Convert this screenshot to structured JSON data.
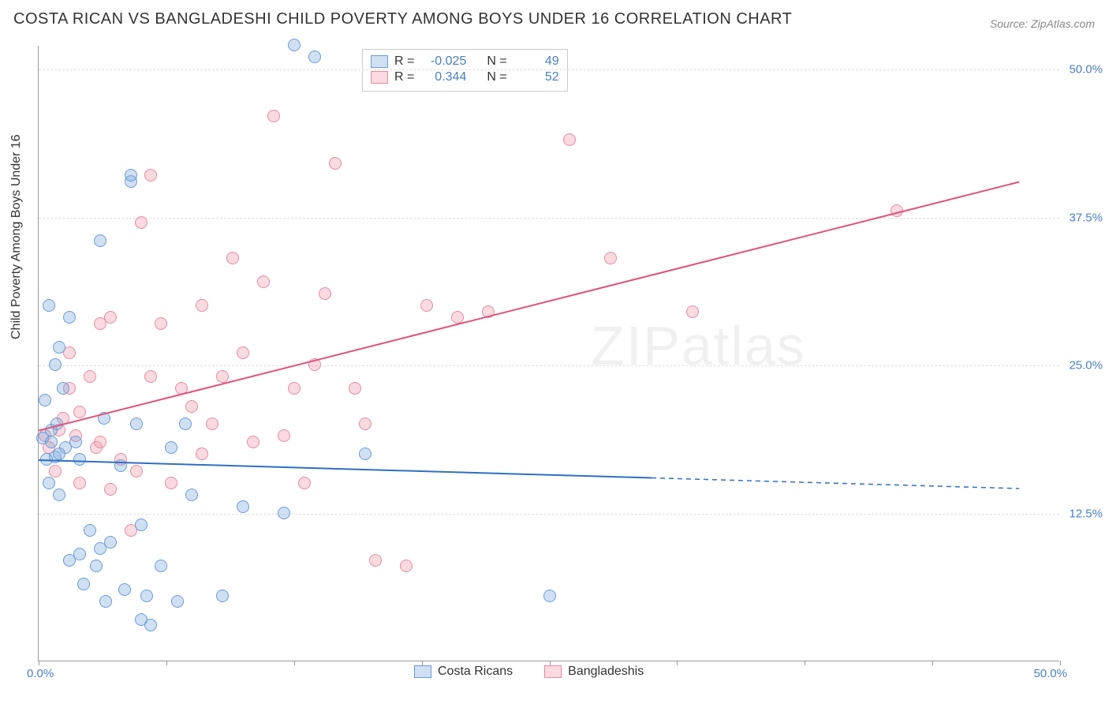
{
  "title": "COSTA RICAN VS BANGLADESHI CHILD POVERTY AMONG BOYS UNDER 16 CORRELATION CHART",
  "source": "Source: ZipAtlas.com",
  "y_axis_label": "Child Poverty Among Boys Under 16",
  "watermark": "ZIPatlas",
  "chart": {
    "type": "scatter",
    "xlim": [
      0,
      50
    ],
    "ylim": [
      0,
      52
    ],
    "x_origin_label": "0.0%",
    "x_end_label": "50.0%",
    "y_ticks": [
      {
        "v": 12.5,
        "label": "12.5%"
      },
      {
        "v": 25.0,
        "label": "25.0%"
      },
      {
        "v": 37.5,
        "label": "37.5%"
      },
      {
        "v": 50.0,
        "label": "50.0%"
      }
    ],
    "x_tick_positions": [
      0,
      6.25,
      12.5,
      18.75,
      25,
      31.25,
      37.5,
      43.75,
      50
    ],
    "background_color": "#ffffff",
    "grid_color": "#dddddd",
    "series": {
      "costa_ricans": {
        "label": "Costa Ricans",
        "fill": "rgba(120,165,220,0.35)",
        "stroke": "#6a9bd8",
        "R": "-0.025",
        "N": "49",
        "regression": {
          "x1": 0,
          "y1": 17.0,
          "x2": 30,
          "y2": 15.5,
          "extrap_x2": 48,
          "extrap_y2": 14.6,
          "color": "#2e6fc2",
          "width": 2
        },
        "points": [
          [
            0.2,
            18.8
          ],
          [
            0.3,
            22.0
          ],
          [
            0.4,
            17.0
          ],
          [
            0.5,
            15.0
          ],
          [
            0.5,
            30.0
          ],
          [
            0.6,
            18.5
          ],
          [
            0.6,
            19.5
          ],
          [
            0.8,
            25.0
          ],
          [
            0.8,
            17.2
          ],
          [
            0.9,
            20.0
          ],
          [
            1.0,
            14.0
          ],
          [
            1.0,
            26.5
          ],
          [
            1.0,
            17.5
          ],
          [
            1.2,
            23.0
          ],
          [
            1.3,
            18.0
          ],
          [
            1.5,
            8.5
          ],
          [
            1.5,
            29.0
          ],
          [
            1.8,
            18.5
          ],
          [
            2.0,
            9.0
          ],
          [
            2.0,
            17.0
          ],
          [
            2.2,
            6.5
          ],
          [
            2.5,
            11.0
          ],
          [
            2.8,
            8.0
          ],
          [
            3.0,
            9.5
          ],
          [
            3.0,
            35.5
          ],
          [
            3.2,
            20.5
          ],
          [
            3.3,
            5.0
          ],
          [
            3.5,
            10.0
          ],
          [
            4.0,
            16.5
          ],
          [
            4.2,
            6.0
          ],
          [
            4.5,
            40.5
          ],
          [
            4.5,
            41.0
          ],
          [
            4.8,
            20.0
          ],
          [
            5.0,
            3.5
          ],
          [
            5.0,
            11.5
          ],
          [
            5.3,
            5.5
          ],
          [
            5.5,
            3.0
          ],
          [
            6.0,
            8.0
          ],
          [
            6.5,
            18.0
          ],
          [
            6.8,
            5.0
          ],
          [
            7.2,
            20.0
          ],
          [
            7.5,
            14.0
          ],
          [
            9.0,
            5.5
          ],
          [
            10.0,
            13.0
          ],
          [
            12.0,
            12.5
          ],
          [
            12.5,
            52.0
          ],
          [
            13.5,
            51.0
          ],
          [
            16.0,
            17.5
          ],
          [
            25.0,
            5.5
          ]
        ]
      },
      "bangladeshis": {
        "label": "Bangladeshis",
        "fill": "rgba(240,150,170,0.35)",
        "stroke": "#e88aa0",
        "R": "0.344",
        "N": "52",
        "regression": {
          "x1": 0,
          "y1": 19.5,
          "x2": 48,
          "y2": 40.5,
          "color": "#e0527a",
          "width": 2
        },
        "points": [
          [
            0.3,
            19.0
          ],
          [
            0.5,
            18.0
          ],
          [
            0.8,
            16.0
          ],
          [
            1.0,
            19.5
          ],
          [
            1.2,
            20.5
          ],
          [
            1.5,
            23.0
          ],
          [
            1.5,
            26.0
          ],
          [
            1.8,
            19.0
          ],
          [
            2.0,
            15.0
          ],
          [
            2.0,
            21.0
          ],
          [
            2.5,
            24.0
          ],
          [
            2.8,
            18.0
          ],
          [
            3.0,
            28.5
          ],
          [
            3.0,
            18.5
          ],
          [
            3.5,
            29.0
          ],
          [
            3.5,
            14.5
          ],
          [
            4.0,
            17.0
          ],
          [
            4.5,
            11.0
          ],
          [
            4.8,
            16.0
          ],
          [
            5.0,
            37.0
          ],
          [
            5.5,
            24.0
          ],
          [
            5.5,
            41.0
          ],
          [
            6.0,
            28.5
          ],
          [
            6.5,
            15.0
          ],
          [
            7.0,
            23.0
          ],
          [
            7.5,
            21.5
          ],
          [
            8.0,
            30.0
          ],
          [
            8.0,
            17.5
          ],
          [
            8.5,
            20.0
          ],
          [
            9.0,
            24.0
          ],
          [
            9.5,
            34.0
          ],
          [
            10.0,
            26.0
          ],
          [
            10.5,
            18.5
          ],
          [
            11.0,
            32.0
          ],
          [
            11.5,
            46.0
          ],
          [
            12.0,
            19.0
          ],
          [
            12.5,
            23.0
          ],
          [
            13.0,
            15.0
          ],
          [
            13.5,
            25.0
          ],
          [
            14.0,
            31.0
          ],
          [
            14.5,
            42.0
          ],
          [
            15.5,
            23.0
          ],
          [
            16.0,
            20.0
          ],
          [
            16.5,
            8.5
          ],
          [
            18.0,
            8.0
          ],
          [
            19.0,
            30.0
          ],
          [
            20.5,
            29.0
          ],
          [
            22.0,
            29.5
          ],
          [
            26.0,
            44.0
          ],
          [
            28.0,
            34.0
          ],
          [
            32.0,
            29.5
          ],
          [
            42.0,
            38.0
          ]
        ]
      }
    }
  }
}
